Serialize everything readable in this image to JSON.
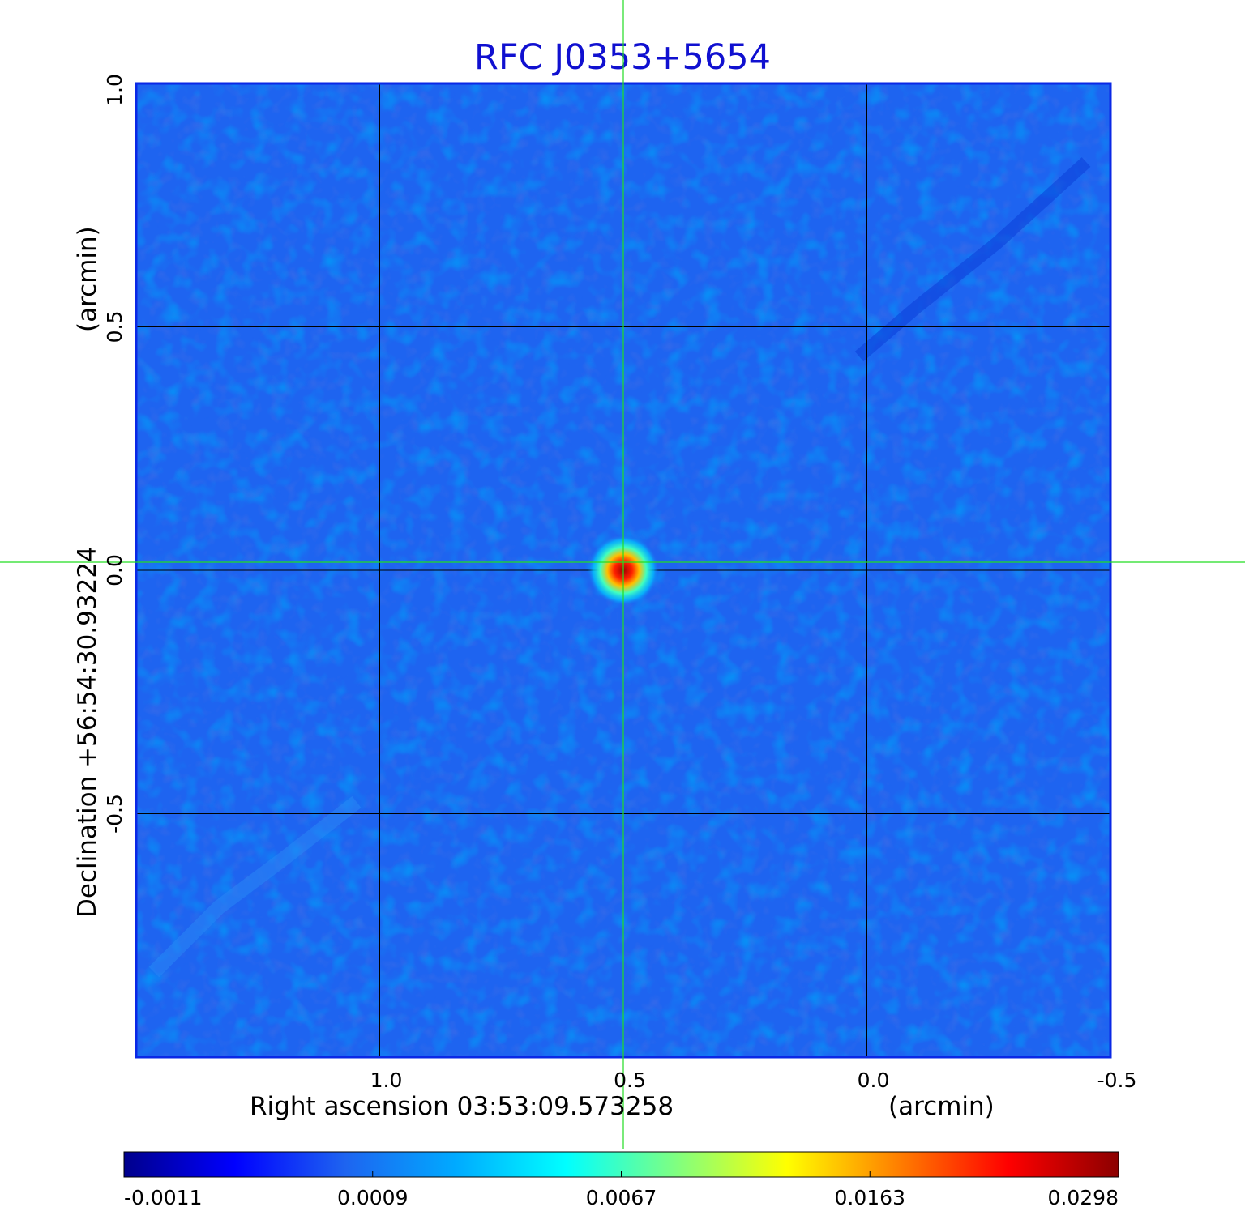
{
  "chart_data": {
    "type": "heatmap",
    "title": "RFC J0353+5654",
    "title_color": "#1010d0",
    "xlabel": "Right ascension  03:53:09.573258",
    "xunit": "(arcmin)",
    "ylabel": "Declination  +56:54:30.93224",
    "yunit": "(arcmin)",
    "xlim": [
      1.5,
      -0.5
    ],
    "ylim": [
      -1.0,
      1.0
    ],
    "x_ticks": [
      {
        "value": 1.0,
        "label": "1.0"
      },
      {
        "value": 0.5,
        "label": "0.5"
      },
      {
        "value": 0.0,
        "label": "0.0"
      },
      {
        "value": -0.5,
        "label": "-0.5"
      }
    ],
    "y_ticks": [
      {
        "value": -0.5,
        "label": "-0.5"
      },
      {
        "value": 0.0,
        "label": "0.0"
      },
      {
        "value": 0.5,
        "label": "0.5"
      },
      {
        "value": 1.0,
        "label": "1.0"
      }
    ],
    "grid": true,
    "grid_color": "#000000",
    "crosshair": {
      "x": 0.5,
      "y": 0.0,
      "color": "#22dd22"
    },
    "source_peak": {
      "x": 0.5,
      "y": 0.0
    },
    "background_color": "#1e64f0",
    "colorbar": {
      "ticks": [
        {
          "label": "-0.0011",
          "frac": 0.0
        },
        {
          "label": "0.0009",
          "frac": 0.25
        },
        {
          "label": "0.0067",
          "frac": 0.5
        },
        {
          "label": "0.0163",
          "frac": 0.75
        },
        {
          "label": "0.0298",
          "frac": 1.0
        }
      ],
      "colors": [
        "#00008c",
        "#0000ff",
        "#1e64f0",
        "#00aaff",
        "#00ffff",
        "#80ff80",
        "#ffff00",
        "#ff8000",
        "#ff0000",
        "#8c0000"
      ]
    }
  }
}
